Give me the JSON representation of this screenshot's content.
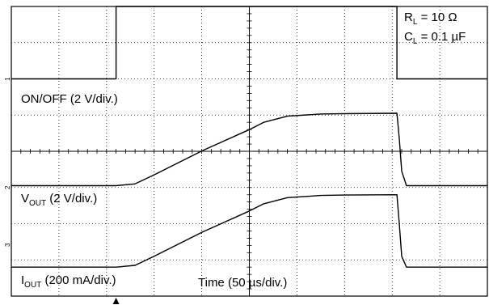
{
  "chart_data": {
    "type": "line",
    "title": "",
    "xlabel": "Time (50 µs/div.)",
    "x_unit": "div",
    "xlim": [
      0,
      10
    ],
    "ylim": [
      0,
      8
    ],
    "grid": true,
    "annotations": {
      "rl": {
        "main": "R",
        "sub": "L",
        "rest": " = 10 Ω"
      },
      "cl": {
        "main": "C",
        "sub": "L",
        "rest": " = 0.1 µF"
      }
    },
    "channel_markers": [
      "1",
      "2",
      "3"
    ],
    "trigger_marker_x_div": 2.2,
    "series": [
      {
        "key": "onoff",
        "label_main": "ON/OFF",
        "label_sub": "",
        "label_rest": " (2 V/div.)",
        "baseline_div": 6.0,
        "x": [
          0,
          2.2,
          2.2,
          8.1,
          8.1,
          10
        ],
        "y": [
          0,
          0,
          2.0,
          2.0,
          0,
          0
        ]
      },
      {
        "key": "vout",
        "label_main": "V",
        "label_sub": "OUT",
        "label_rest": " (2 V/div.)",
        "baseline_div": 3.05,
        "x": [
          0,
          2.2,
          2.6,
          3.0,
          4.0,
          5.0,
          5.3,
          5.8,
          6.5,
          7.0,
          8.1,
          8.15,
          8.2,
          8.3,
          10
        ],
        "y": [
          0,
          0,
          0.05,
          0.3,
          0.96,
          1.55,
          1.75,
          1.92,
          1.98,
          1.99,
          2.0,
          1.3,
          0.4,
          0.0,
          0.0
        ]
      },
      {
        "key": "iout",
        "label_main": "I",
        "label_sub": "OUT",
        "label_rest": " (200 mA/div.)",
        "baseline_div": 0.8,
        "x": [
          0,
          2.2,
          2.6,
          3.0,
          4.0,
          5.0,
          5.3,
          5.8,
          6.5,
          7.0,
          8.1,
          8.15,
          8.2,
          8.3,
          10
        ],
        "y": [
          0,
          0,
          0.05,
          0.3,
          0.96,
          1.55,
          1.75,
          1.92,
          1.98,
          1.99,
          2.0,
          1.2,
          0.3,
          0.0,
          0.0
        ]
      }
    ]
  }
}
